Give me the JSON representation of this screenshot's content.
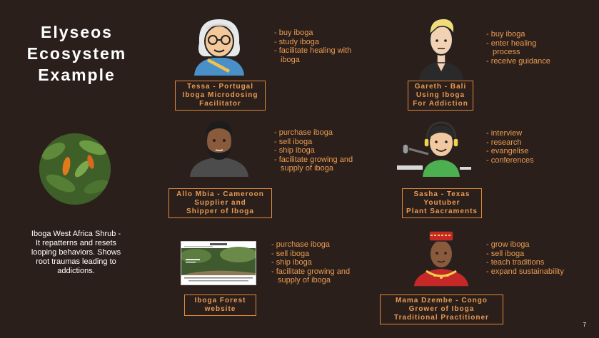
{
  "title": {
    "line1": "Elyseos",
    "line2": "Ecosystem",
    "line3": "Example"
  },
  "shrub": {
    "caption_lines": [
      "Iboga West Africa Shrub -",
      "It repatterns and resets",
      "looping behaviors. Shows",
      "root traumas leading to",
      "addictions."
    ]
  },
  "tessa": {
    "label": [
      "Tessa - Portugal",
      "Iboga Microdosing",
      "Facilitator"
    ],
    "bullets": [
      "buy iboga",
      "study iboga",
      "facilitate healing with iboga"
    ]
  },
  "gareth": {
    "label": [
      "Gareth - Bali",
      "Using Iboga",
      "For Addiction"
    ],
    "bullets": [
      "buy iboga",
      "enter healing process",
      "receive guidance"
    ]
  },
  "allo": {
    "label": [
      "Allo Mbia - Cameroon",
      "Supplier and",
      "Shipper of Iboga"
    ],
    "bullets": [
      "purchase iboga",
      "sell iboga",
      "ship iboga",
      "facilitate growing and supply of iboga"
    ]
  },
  "sasha": {
    "label": [
      "Sasha - Texas",
      "Youtuber",
      "Plant Sacraments"
    ],
    "bullets": [
      "interview",
      "research",
      "evangelise",
      "conferences"
    ]
  },
  "forest": {
    "label": [
      "Iboga Forest",
      "website"
    ],
    "bullets": [
      "purchase iboga",
      "sell iboga",
      "ship iboga",
      "facilitate growing and supply of iboga"
    ]
  },
  "mama": {
    "label": [
      "Mama Dzembe - Congo",
      "Grower of Iboga",
      "Traditional Practitioner"
    ],
    "bullets": [
      "grow iboga",
      "sell iboga",
      "teach traditions",
      "expand sustainability"
    ]
  },
  "page_number": "7",
  "colors": {
    "background": "#2b1f1b",
    "accent": "#e89b52",
    "border": "#e08a3c"
  }
}
